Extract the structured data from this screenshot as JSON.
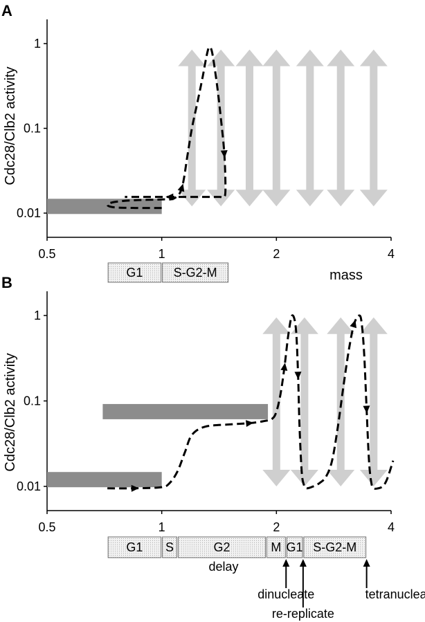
{
  "chart_data": [
    {
      "panel": "A",
      "type": "line",
      "title": "",
      "xlabel": "mass",
      "ylabel": "Cdc28/Clb2 activity",
      "xscale": "log2",
      "yscale": "log",
      "xlim": [
        0.5,
        4
      ],
      "ylim": [
        0.008,
        1.5
      ],
      "xticks": [
        0.5,
        1,
        2,
        4
      ],
      "xtick_labels": [
        "0.5",
        "1",
        "2",
        "4"
      ],
      "yticks": [
        0.01,
        0.1,
        1
      ],
      "ytick_labels": [
        "0.01",
        "0.1",
        "1"
      ],
      "grid": false,
      "steady_states": [
        {
          "x": [
            0.5,
            1.0
          ],
          "y": 0.012
        }
      ],
      "oscillation_masses": [
        1.2,
        1.43,
        1.7,
        2.0,
        2.45,
        2.95,
        3.6
      ],
      "oscillation_range": [
        0.012,
        0.85
      ],
      "trajectory": {
        "x": [
          1.0,
          0.85,
          0.75,
          0.72,
          0.75,
          0.85,
          1.0,
          1.08,
          1.13,
          1.17,
          1.2,
          1.24,
          1.28,
          1.31,
          1.33,
          1.35,
          1.37,
          1.4,
          1.43,
          1.46,
          1.47,
          1.46,
          1.42,
          1.35,
          1.25,
          1.15,
          1.05,
          0.9,
          0.8
        ],
        "y": [
          0.0115,
          0.0115,
          0.0117,
          0.0125,
          0.0135,
          0.0142,
          0.0145,
          0.015,
          0.02,
          0.05,
          0.1,
          0.2,
          0.4,
          0.7,
          0.9,
          0.85,
          0.6,
          0.3,
          0.13,
          0.05,
          0.02,
          0.0155,
          0.0155,
          0.0155,
          0.0155,
          0.0155,
          0.0155,
          0.0155,
          0.0155
        ]
      },
      "trajectory_arrows_at_index": [
        8,
        19,
        26
      ],
      "phases": [
        {
          "label": "G1",
          "from": 0.72,
          "to": 1.0
        },
        {
          "label": "S-G2-M",
          "from": 1.0,
          "to": 1.5
        }
      ]
    },
    {
      "panel": "B",
      "type": "line",
      "title": "",
      "xlabel": "",
      "ylabel": "Cdc28/Clb2 activity",
      "xscale": "log2",
      "yscale": "log",
      "xlim": [
        0.5,
        4
      ],
      "ylim": [
        0.008,
        1.5
      ],
      "xticks": [
        0.5,
        1,
        2,
        4
      ],
      "xtick_labels": [
        "0.5",
        "1",
        "2",
        "4"
      ],
      "yticks": [
        0.01,
        0.1,
        1
      ],
      "ytick_labels": [
        "0.01",
        "0.1",
        "1"
      ],
      "grid": false,
      "steady_states": [
        {
          "x": [
            0.5,
            1.0
          ],
          "y": 0.012
        },
        {
          "x": [
            0.7,
            1.9
          ],
          "y": 0.075
        }
      ],
      "oscillation_masses": [
        2.0,
        2.37,
        2.95,
        3.6
      ],
      "oscillation_range": [
        0.01,
        0.95
      ],
      "trajectory": {
        "x": [
          0.72,
          0.85,
          1.0,
          1.05,
          1.1,
          1.15,
          1.2,
          1.3,
          1.5,
          1.7,
          1.85,
          1.95,
          2.0,
          2.05,
          2.1,
          2.15,
          2.2,
          2.25,
          2.28,
          2.3,
          2.33,
          2.36,
          2.4,
          2.5,
          2.6,
          2.7,
          2.8,
          2.9,
          3.0,
          3.1,
          3.2,
          3.3,
          3.35,
          3.4,
          3.45,
          3.5,
          3.55,
          3.6,
          3.7,
          3.8,
          3.9,
          4.05
        ],
        "y": [
          0.0095,
          0.0095,
          0.0098,
          0.011,
          0.015,
          0.025,
          0.04,
          0.05,
          0.053,
          0.055,
          0.058,
          0.062,
          0.075,
          0.12,
          0.25,
          0.6,
          1.0,
          0.7,
          0.2,
          0.05,
          0.015,
          0.0105,
          0.0095,
          0.01,
          0.011,
          0.013,
          0.02,
          0.05,
          0.15,
          0.4,
          0.8,
          1.0,
          0.8,
          0.35,
          0.08,
          0.02,
          0.011,
          0.0095,
          0.0095,
          0.01,
          0.012,
          0.02
        ]
      },
      "trajectory_arrows_at_index": [
        1,
        9,
        14,
        18,
        30,
        34
      ],
      "phases": [
        {
          "label": "G1",
          "from": 0.72,
          "to": 1.0
        },
        {
          "label": "S",
          "from": 1.0,
          "to": 1.1
        },
        {
          "label": "G2",
          "from": 1.1,
          "to": 1.88
        },
        {
          "label": "M",
          "from": 1.88,
          "to": 2.12
        },
        {
          "label": "G1",
          "from": 2.12,
          "to": 2.35
        },
        {
          "label": "S-G2-M",
          "from": 2.35,
          "to": 3.45
        }
      ],
      "delay_label": "delay",
      "annotations": [
        {
          "text": "dinucleate",
          "at": 2.12
        },
        {
          "text": "re-replicate",
          "at": 2.35
        },
        {
          "text": "tetranucleate",
          "at": 3.45
        }
      ]
    }
  ],
  "colors": {
    "steady": "#8c8c8c",
    "oscillation": "#cfcfcf",
    "trajectory": "#000000",
    "phase_fill": "#eeeeee",
    "phase_border": "#6e6e6e"
  }
}
